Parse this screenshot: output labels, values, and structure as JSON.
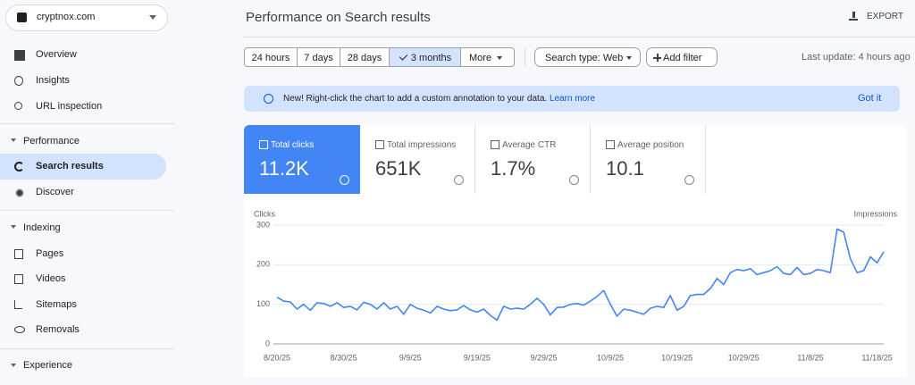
{
  "sidebar": {
    "property": "cryptnox.com",
    "items": [
      "Overview",
      "Insights",
      "URL inspection"
    ],
    "sections": [
      {
        "title": "Performance",
        "items": [
          "Search results",
          "Discover"
        ]
      },
      {
        "title": "Indexing",
        "items": [
          "Pages",
          "Videos",
          "Sitemaps",
          "Removals"
        ]
      },
      {
        "title": "Experience",
        "items": []
      }
    ]
  },
  "header": {
    "title": "Performance on Search results",
    "export": "EXPORT"
  },
  "filters": {
    "ranges": [
      "24 hours",
      "7 days",
      "28 days",
      "3 months"
    ],
    "more": "More",
    "search_type": "Search type: Web",
    "add_filter": "Add filter",
    "last_update": "Last update: 4 hours ago"
  },
  "banner": {
    "text": "New! Right-click the chart to add a custom annotation to your data.",
    "link": "Learn more",
    "dismiss": "Got it"
  },
  "metrics": [
    {
      "label": "Total clicks",
      "value": "11.2K"
    },
    {
      "label": "Total impressions",
      "value": "651K"
    },
    {
      "label": "Average CTR",
      "value": "1.7%"
    },
    {
      "label": "Average position",
      "value": "10.1"
    }
  ],
  "chart_data": {
    "type": "line",
    "ylabel": "Clicks",
    "y2label": "Impressions",
    "ylim": [
      0,
      300
    ],
    "yticks": [
      0,
      100,
      200,
      300
    ],
    "grid": true,
    "categories": [
      "8/20/25",
      null,
      null,
      null,
      null,
      null,
      null,
      null,
      null,
      null,
      "8/30/25",
      null,
      null,
      null,
      null,
      null,
      null,
      null,
      null,
      null,
      "9/9/25",
      null,
      null,
      null,
      null,
      null,
      null,
      null,
      null,
      null,
      "9/19/25",
      null,
      null,
      null,
      null,
      null,
      null,
      null,
      null,
      null,
      "9/29/25",
      null,
      null,
      null,
      null,
      null,
      null,
      null,
      null,
      null,
      "10/9/25",
      null,
      null,
      null,
      null,
      null,
      null,
      null,
      null,
      null,
      "10/19/25",
      null,
      null,
      null,
      null,
      null,
      null,
      null,
      null,
      null,
      "10/29/25",
      null,
      null,
      null,
      null,
      null,
      null,
      null,
      null,
      null,
      "11/8/25",
      null,
      null,
      null,
      null,
      null,
      null,
      null,
      null,
      null,
      "11/18/25",
      null
    ],
    "series": [
      {
        "color": "#4285f4",
        "values": [
          118,
          108,
          106,
          88,
          100,
          85,
          104,
          102,
          95,
          104,
          92,
          95,
          86,
          105,
          100,
          88,
          104,
          88,
          95,
          75,
          100,
          90,
          85,
          78,
          95,
          88,
          84,
          86,
          97,
          86,
          80,
          88,
          72,
          60,
          95,
          88,
          90,
          88,
          100,
          115,
          100,
          73,
          92,
          93,
          100,
          102,
          98,
          108,
          120,
          135,
          100,
          70,
          88,
          85,
          80,
          75,
          90,
          95,
          92,
          122,
          85,
          95,
          122,
          125,
          125,
          140,
          165,
          150,
          180,
          188,
          185,
          190,
          175,
          180,
          185,
          195,
          178,
          175,
          193,
          175,
          178,
          188,
          185,
          180,
          290,
          282,
          215,
          180,
          185,
          220,
          205,
          232
        ]
      }
    ]
  }
}
